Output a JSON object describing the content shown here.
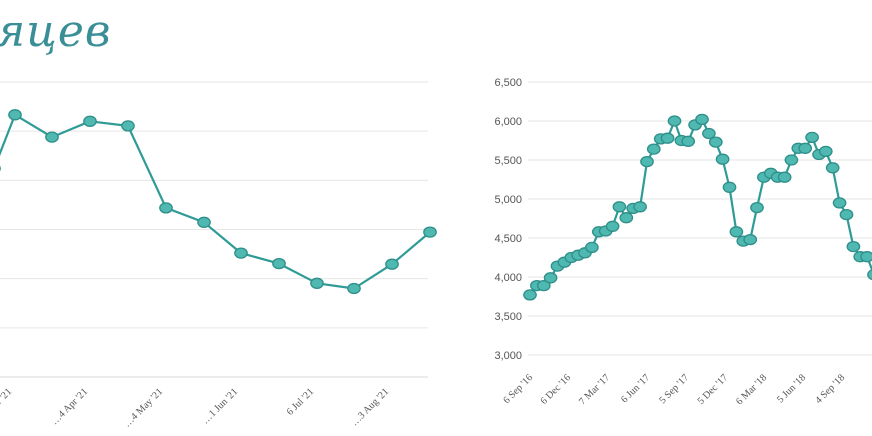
{
  "header": {
    "title": "яцев"
  },
  "colors": {
    "line": "#2f9b97",
    "marker_fill": "#4fb8b0",
    "marker_stroke": "#2f8f8a",
    "title": "#3a8f96"
  },
  "chart_data": [
    {
      "type": "line",
      "title": "",
      "x": [
        "…ar '21",
        "",
        "…4 Apr '21",
        "",
        "",
        "…4 May '21",
        "",
        "…1 Jun '21",
        "",
        "6 Jul '21",
        "",
        "…3 Aug '21",
        ""
      ],
      "x_tick_labels": [
        "…ar '21",
        "…4 Apr '21",
        "…4 May '21",
        "…1 Jun '21",
        "6 Jul '21",
        "…3 Aug '21"
      ],
      "series": [
        {
          "values": [
            6180,
            7000,
            6660,
            6900,
            6830,
            5580,
            5360,
            4890,
            4730,
            4430,
            4350,
            4720,
            5210
          ]
        }
      ],
      "ylim": [
        3000,
        7500
      ],
      "grid": true
    },
    {
      "type": "line",
      "title": "",
      "x_tick_labels": [
        "6 Sep '16",
        "6 Dec '16",
        "7 Mar '17",
        "6 Jun '17",
        "5 Sep '17",
        "5 Dec '17",
        "6 Mar '18",
        "5 Jun '18",
        "4 Sep '18"
      ],
      "y_tick_labels": [
        "3,000",
        "3,500",
        "4,000",
        "4,500",
        "5,000",
        "5,500",
        "6,000",
        "6,500"
      ],
      "series": [
        {
          "values": [
            3770,
            3890,
            3890,
            3990,
            4140,
            4190,
            4250,
            4280,
            4310,
            4380,
            4580,
            4590,
            4650,
            4900,
            4760,
            4880,
            4900,
            5480,
            5640,
            5770,
            5780,
            6000,
            5750,
            5740,
            5950,
            6020,
            5840,
            5730,
            5510,
            5150,
            4580,
            4460,
            4480,
            4890,
            5280,
            5330,
            5280,
            5280,
            5500,
            5650,
            5650,
            5790,
            5570,
            5610,
            5400,
            4950,
            4800,
            4390,
            4260,
            4260,
            4030
          ]
        }
      ],
      "ylim": [
        3000,
        6500
      ],
      "grid": true
    }
  ]
}
